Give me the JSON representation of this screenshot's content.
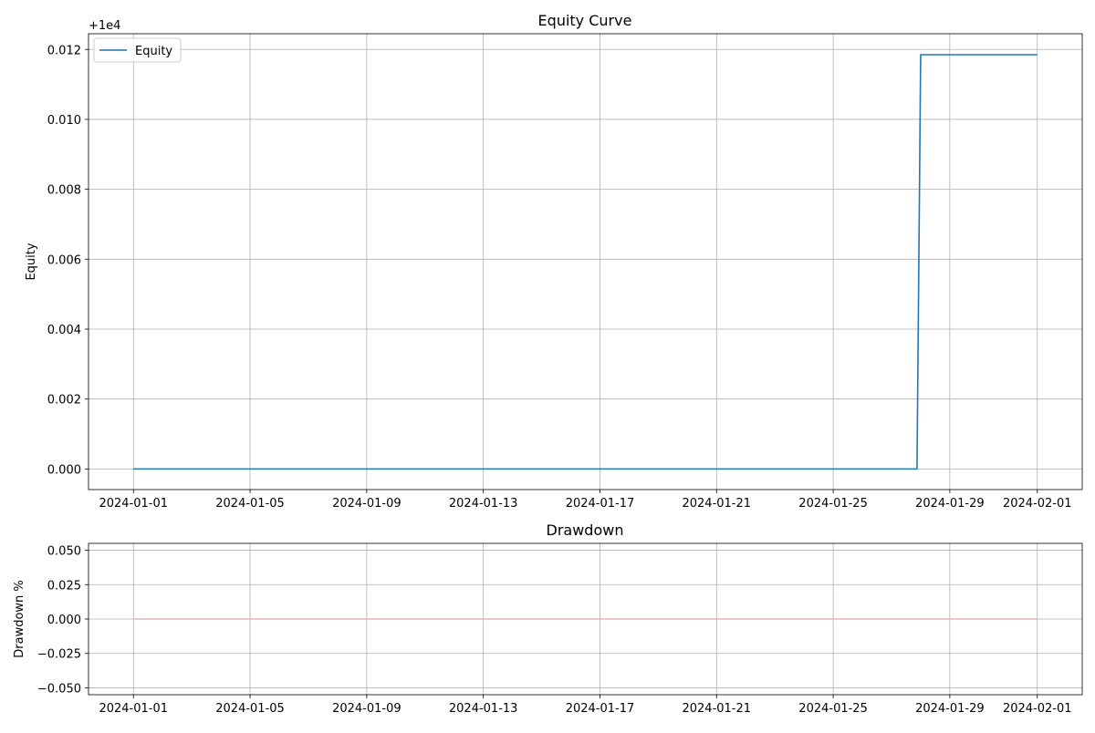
{
  "chart_data": [
    {
      "type": "line",
      "title": "Equity Curve",
      "xlabel": "",
      "ylabel": "Equity",
      "y_offset_label": "+1e4",
      "y_offset": 10000,
      "xlim": [
        "2023-12-30T11:00",
        "2024-02-02T13:00"
      ],
      "ylim": [
        -0.00059,
        0.01245
      ],
      "grid": true,
      "legend": "upper-left",
      "x_ticks": [
        "2024-01-01",
        "2024-01-05",
        "2024-01-09",
        "2024-01-13",
        "2024-01-17",
        "2024-01-21",
        "2024-01-25",
        "2024-01-29",
        "2024-02-01"
      ],
      "y_ticks": [
        0.0,
        0.002,
        0.004,
        0.006,
        0.008,
        0.01,
        0.012
      ],
      "y_tick_labels": [
        "0.000",
        "0.002",
        "0.004",
        "0.006",
        "0.008",
        "0.010",
        "0.012"
      ],
      "series": [
        {
          "name": "Equity",
          "color": "#1f77b4",
          "x": [
            "2024-01-01T00:00",
            "2024-01-27T21:00",
            "2024-01-28T00:00",
            "2024-02-01T00:00"
          ],
          "y": [
            0.0,
            0.0,
            0.01185,
            0.01185
          ]
        }
      ]
    },
    {
      "type": "line",
      "title": "Drawdown",
      "xlabel": "",
      "ylabel": "Drawdown %",
      "xlim": [
        "2023-12-30T11:00",
        "2024-02-02T13:00"
      ],
      "ylim": [
        -0.055,
        0.055
      ],
      "grid": true,
      "x_ticks": [
        "2024-01-01",
        "2024-01-05",
        "2024-01-09",
        "2024-01-13",
        "2024-01-17",
        "2024-01-21",
        "2024-01-25",
        "2024-01-29",
        "2024-02-01"
      ],
      "y_ticks": [
        -0.05,
        -0.025,
        0.0,
        0.025,
        0.05
      ],
      "y_tick_labels": [
        "−0.050",
        "−0.025",
        "0.000",
        "0.025",
        "0.050"
      ],
      "series": [
        {
          "color": "#e0b8ad",
          "x": [
            "2024-01-01T00:00",
            "2024-02-01T00:00"
          ],
          "y": [
            0.0,
            0.0
          ]
        }
      ]
    }
  ]
}
